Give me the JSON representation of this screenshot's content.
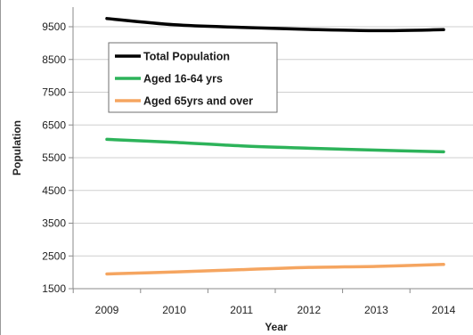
{
  "chart_data": {
    "type": "line",
    "title": "",
    "xlabel": "Year",
    "ylabel": "Population",
    "categories": [
      "2009",
      "2010",
      "2011",
      "2012",
      "2013",
      "2014"
    ],
    "ylim": [
      1500,
      9800
    ],
    "yticks": [
      1500,
      2500,
      3500,
      4500,
      5500,
      6500,
      7500,
      8500,
      9500
    ],
    "ytick_labels": [
      "1500",
      "2500",
      "3500",
      "4500",
      "5500",
      "6500",
      "7500",
      "8500",
      "9500"
    ],
    "grid": true,
    "legend_position": "top-left, inside plot",
    "series": [
      {
        "name": "Total Population",
        "color": "#000000",
        "values": [
          9750,
          9560,
          9480,
          9420,
          9380,
          9410
        ]
      },
      {
        "name": "Aged 16-64 yrs",
        "color": "#2db35a",
        "values": [
          6060,
          5970,
          5860,
          5790,
          5730,
          5680
        ]
      },
      {
        "name": "Aged 65yrs and over",
        "color": "#f5a560",
        "values": [
          1950,
          2010,
          2080,
          2150,
          2180,
          2240
        ]
      }
    ]
  }
}
